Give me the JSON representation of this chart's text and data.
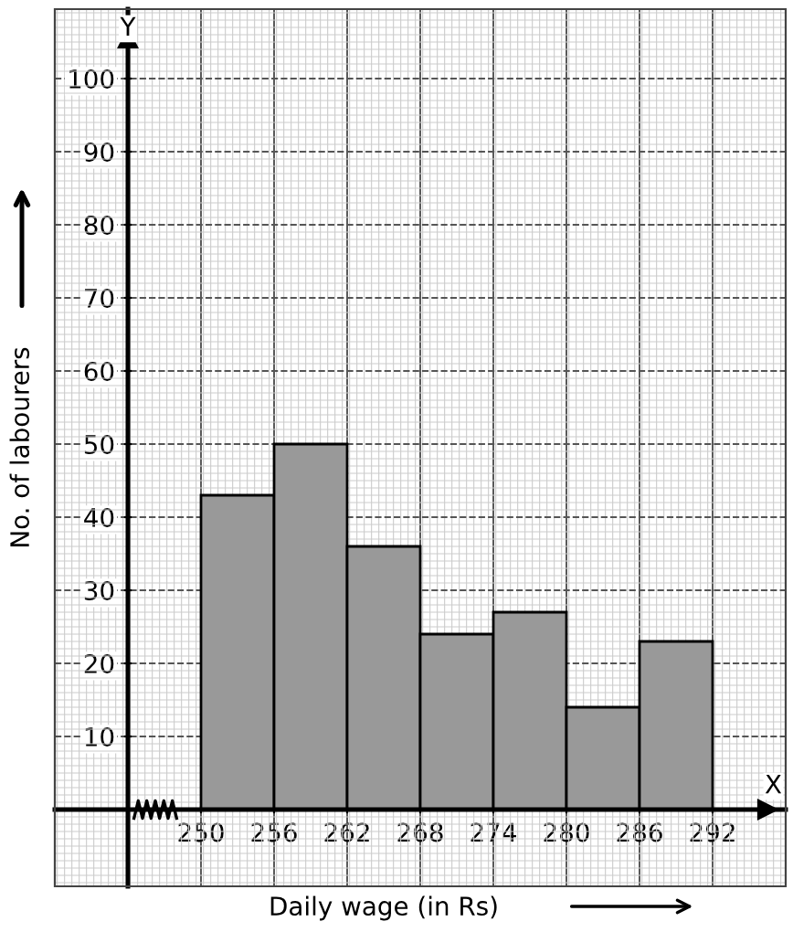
{
  "chart_data": {
    "type": "histogram",
    "xlabel": "Daily wage (in Rs)",
    "ylabel": "No. of labourers",
    "bins": [
      250,
      256,
      262,
      268,
      274,
      280,
      286,
      292
    ],
    "values": [
      43,
      50,
      36,
      24,
      27,
      14,
      23
    ],
    "color": "#999999",
    "xlim": [
      238,
      298
    ],
    "ylim": [
      -10.5,
      109.5
    ],
    "xticks": [
      250,
      256,
      262,
      268,
      274,
      280,
      286,
      292
    ],
    "yticks": [
      10,
      20,
      30,
      40,
      50,
      60,
      70,
      80,
      90,
      100
    ],
    "grid": true,
    "annotations": [
      "Y",
      "X"
    ]
  }
}
